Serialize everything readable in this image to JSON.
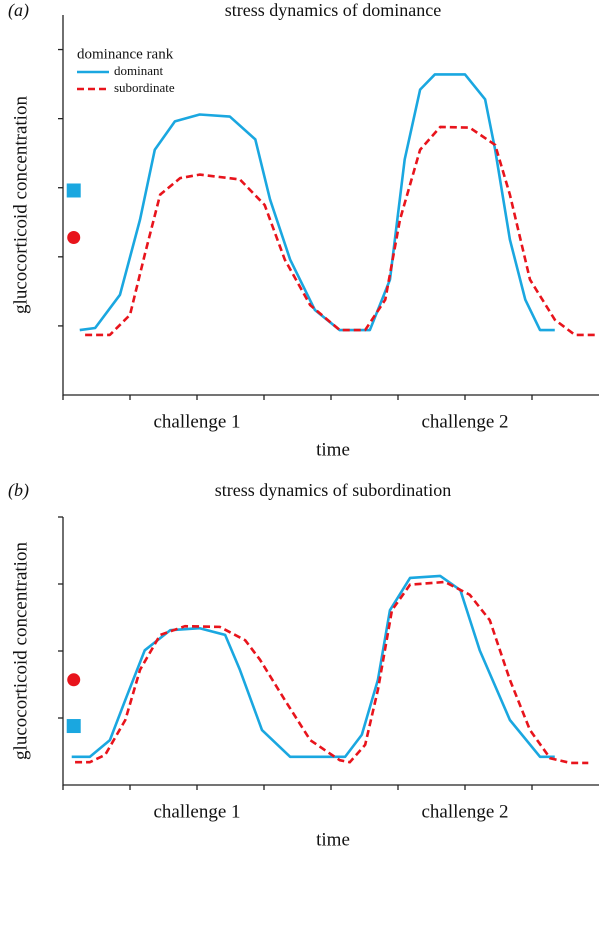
{
  "chart_data": [
    {
      "type": "line",
      "panel": "(a)",
      "title": "stress dynamics of dominance",
      "xlabel": "time",
      "ylabel": "glucocorticoid concentration",
      "legend_title": "dominance rank",
      "legend": "upper left",
      "xlim": [
        0,
        8
      ],
      "ylim": [
        0,
        5.5
      ],
      "xticks": [
        0,
        1,
        2,
        3,
        4,
        5,
        6,
        7
      ],
      "yticks": [
        1,
        2,
        3,
        4,
        5
      ],
      "xlabels": [
        {
          "value": 2,
          "label": "challenge 1"
        },
        {
          "value": 6,
          "label": "challenge 2"
        }
      ],
      "series": [
        {
          "name": "dominant",
          "color": "#1aa7e0",
          "dash": false,
          "x": [
            0.25,
            0.48,
            0.85,
            1.15,
            1.37,
            1.67,
            2.04,
            2.49,
            2.87,
            3.09,
            3.39,
            3.76,
            4.13,
            4.58,
            4.88,
            5.1,
            5.33,
            5.55,
            6.0,
            6.3,
            6.45,
            6.67,
            6.9,
            7.12,
            7.34
          ],
          "values": [
            0.94,
            0.97,
            1.45,
            2.54,
            3.55,
            3.96,
            4.06,
            4.03,
            3.7,
            2.83,
            1.96,
            1.23,
            0.94,
            0.94,
            1.67,
            3.41,
            4.42,
            4.64,
            4.64,
            4.28,
            3.55,
            2.25,
            1.38,
            0.94,
            0.94
          ]
        },
        {
          "name": "subordinate",
          "color": "#e8141c",
          "dash": true,
          "x": [
            0.33,
            0.7,
            1.0,
            1.22,
            1.45,
            1.75,
            2.04,
            2.64,
            3.01,
            3.31,
            3.69,
            4.13,
            4.51,
            4.81,
            5.03,
            5.33,
            5.63,
            6.07,
            6.45,
            6.67,
            6.97,
            7.34,
            7.64,
            7.94
          ],
          "values": [
            0.87,
            0.87,
            1.16,
            2.03,
            2.9,
            3.14,
            3.19,
            3.12,
            2.75,
            1.96,
            1.3,
            0.94,
            0.94,
            1.38,
            2.54,
            3.55,
            3.88,
            3.87,
            3.62,
            2.9,
            1.67,
            1.09,
            0.87,
            0.87
          ]
        }
      ],
      "markers": [
        {
          "shape": "square",
          "color": "#1aa7e0",
          "x": 0.16,
          "y": 2.96
        },
        {
          "shape": "circle",
          "color": "#e8141c",
          "x": 0.16,
          "y": 2.28
        }
      ]
    },
    {
      "type": "line",
      "panel": "(b)",
      "title": "stress dynamics of subordination",
      "xlabel": "time",
      "ylabel": "glucocorticoid concentration",
      "xlim": [
        0,
        8
      ],
      "ylim": [
        0,
        4
      ],
      "xticks": [
        0,
        1,
        2,
        3,
        4,
        5,
        6,
        7
      ],
      "yticks": [
        1,
        2,
        3,
        4
      ],
      "xlabels": [
        {
          "value": 2,
          "label": "challenge 1"
        },
        {
          "value": 6,
          "label": "challenge 2"
        }
      ],
      "series": [
        {
          "color": "#1aa7e0",
          "dash": false,
          "x": [
            0.13,
            0.4,
            0.7,
            0.93,
            1.22,
            1.6,
            2.04,
            2.42,
            2.64,
            2.97,
            3.39,
            4.21,
            4.46,
            4.7,
            4.88,
            5.18,
            5.63,
            5.93,
            6.22,
            6.67,
            7.12,
            7.34
          ],
          "values": [
            0.42,
            0.42,
            0.67,
            1.27,
            2.01,
            2.31,
            2.34,
            2.24,
            1.72,
            0.82,
            0.42,
            0.42,
            0.75,
            1.57,
            2.61,
            3.09,
            3.12,
            2.91,
            2.01,
            0.97,
            0.42,
            0.42
          ]
        },
        {
          "color": "#e8141c",
          "dash": true,
          "x": [
            0.18,
            0.4,
            0.63,
            0.93,
            1.15,
            1.45,
            1.82,
            2.34,
            2.72,
            2.94,
            3.31,
            3.69,
            4.13,
            4.28,
            4.51,
            4.7,
            4.91,
            5.18,
            5.7,
            6.07,
            6.37,
            6.67,
            6.97,
            7.27,
            7.57,
            7.84
          ],
          "values": [
            0.34,
            0.34,
            0.45,
            0.97,
            1.72,
            2.24,
            2.37,
            2.36,
            2.16,
            1.87,
            1.27,
            0.67,
            0.37,
            0.34,
            0.6,
            1.42,
            2.61,
            2.99,
            3.03,
            2.84,
            2.46,
            1.57,
            0.82,
            0.4,
            0.33,
            0.33
          ]
        }
      ],
      "markers": [
        {
          "shape": "circle",
          "color": "#e8141c",
          "x": 0.16,
          "y": 1.57
        },
        {
          "shape": "square",
          "color": "#1aa7e0",
          "x": 0.16,
          "y": 0.88
        }
      ]
    }
  ]
}
